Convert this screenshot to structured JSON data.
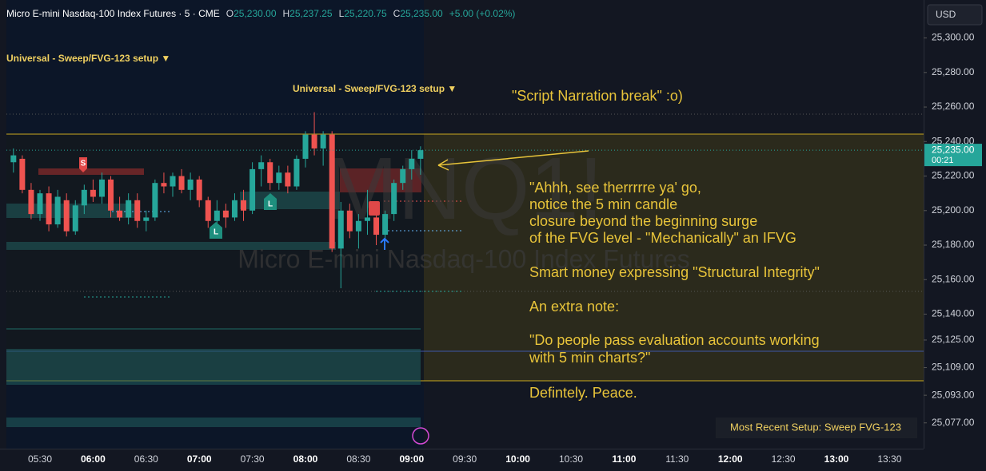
{
  "chart_data": {
    "type": "candlestick",
    "header": {
      "symbol": "Micro E-mini Nasdaq-100 Index Futures · 5 · CME",
      "o_label": "O",
      "o": "25,230.00",
      "h_label": "H",
      "h": "25,237.25",
      "l_label": "L",
      "l": "25,220.75",
      "c_label": "C",
      "c": "25,235.00",
      "change": "+5.00 (+0.02%)"
    },
    "currency": "USD",
    "watermark_symbol": "MNQ1!",
    "watermark_name": "Micro E-mini Nasdaq-100 Index Futures",
    "indicator_labels": [
      "Universal - Sweep/FVG-123 setup ▼",
      "Universal - Sweep/FVG-123 setup ▼"
    ],
    "markers": [
      "S",
      "L",
      "L"
    ],
    "last_price_label": "25,235.00",
    "countdown": "00:21",
    "setup_label": "Most Recent Setup: Sweep FVG-123",
    "annotation_title": "\"Script Narration break\" :o)",
    "annotation_lines": [
      "\"Ahhh, see therrrrre ya' go,",
      "notice the 5 min candle",
      "closure beyond the beginning surge",
      "of the FVG level - \"Mechanically\" an IFVG",
      "Smart money expressing \"Structural Integrity\"",
      "An extra note:",
      "\"Do people pass evaluation accounts working",
      "with 5 min charts?\"",
      "Defintely. Peace."
    ],
    "x": [
      "05:15",
      "05:20",
      "05:25",
      "05:30",
      "05:35",
      "05:40",
      "05:45",
      "05:50",
      "05:55",
      "06:00",
      "06:05",
      "06:10",
      "06:15",
      "06:20",
      "06:25",
      "06:30",
      "06:35",
      "06:40",
      "06:45",
      "06:50",
      "06:55",
      "07:00",
      "07:05",
      "07:10",
      "07:15",
      "07:20",
      "07:25",
      "07:30",
      "07:35",
      "07:40",
      "07:45",
      "07:50",
      "07:55",
      "08:00",
      "08:05",
      "08:10",
      "08:15",
      "08:20",
      "08:25",
      "08:30",
      "08:35",
      "08:40",
      "08:45",
      "08:50",
      "08:55",
      "09:00",
      "09:05"
    ],
    "open": [
      25228,
      25230,
      25212,
      25198,
      25210,
      25192,
      25206,
      25188,
      25203,
      25212,
      25208,
      25218,
      25200,
      25196,
      25206,
      25194,
      25196,
      25216,
      25214,
      25220,
      25212,
      25218,
      25206,
      25194,
      25200,
      25196,
      25206,
      25200,
      25224,
      25228,
      25216,
      25222,
      25214,
      25230,
      25244,
      25236,
      25244,
      25178,
      25200,
      25188,
      25194,
      25196,
      25186,
      25198,
      25216,
      25224,
      25230
    ],
    "high": [
      25236,
      25232,
      25216,
      25212,
      25214,
      25212,
      25210,
      25206,
      25215,
      25218,
      25222,
      25220,
      25208,
      25210,
      25210,
      25200,
      25218,
      25222,
      25222,
      25224,
      25222,
      25220,
      25208,
      25206,
      25204,
      25210,
      25212,
      25228,
      25232,
      25230,
      25226,
      25226,
      25232,
      25246,
      25257,
      25246,
      25246,
      25205,
      25204,
      25198,
      25212,
      25204,
      25200,
      25218,
      25226,
      25235,
      25237.25
    ],
    "low": [
      25222,
      25210,
      25195,
      25194,
      25188,
      25190,
      25185,
      25186,
      25198,
      25205,
      25204,
      25196,
      25194,
      25192,
      25190,
      25188,
      25194,
      25210,
      25208,
      25210,
      25206,
      25202,
      25190,
      25186,
      25190,
      25194,
      25194,
      25198,
      25214,
      25212,
      25212,
      25210,
      25212,
      25225,
      25232,
      25226,
      25176,
      25155,
      25184,
      25178,
      25186,
      25180,
      25183,
      25194,
      25212,
      25218,
      25220.75
    ],
    "close": [
      25232,
      25212,
      25198,
      25210,
      25192,
      25208,
      25188,
      25203,
      25212,
      25208,
      25218,
      25200,
      25196,
      25206,
      25194,
      25196,
      25216,
      25214,
      25220,
      25212,
      25218,
      25206,
      25194,
      25200,
      25196,
      25206,
      25200,
      25224,
      25228,
      25216,
      25222,
      25214,
      25230,
      25244,
      25236,
      25244,
      25178,
      25200,
      25188,
      25194,
      25196,
      25186,
      25198,
      25216,
      25224,
      25230,
      25235
    ],
    "up_color": "#26a69a",
    "down_color": "#ef5350",
    "ylim": [
      25063,
      25322
    ],
    "yticks": [
      {
        "value": 25300,
        "label": "25,300.00"
      },
      {
        "value": 25280,
        "label": "25,280.00"
      },
      {
        "value": 25260,
        "label": "25,260.00"
      },
      {
        "value": 25240,
        "label": "25,240.00"
      },
      {
        "value": 25220,
        "label": "25,220.00"
      },
      {
        "value": 25200,
        "label": "25,200.00"
      },
      {
        "value": 25180,
        "label": "25,180.00"
      },
      {
        "value": 25160,
        "label": "25,160.00"
      },
      {
        "value": 25140,
        "label": "25,140.00"
      },
      {
        "value": 25125,
        "label": "25,125.00"
      },
      {
        "value": 25109,
        "label": "25,109.00"
      },
      {
        "value": 25093,
        "label": "25,093.00"
      },
      {
        "value": 25077,
        "label": "25,077.00"
      }
    ],
    "xticks": [
      "05:30",
      "06:00",
      "06:30",
      "07:00",
      "07:30",
      "08:00",
      "08:30",
      "09:00",
      "09:30",
      "10:00",
      "10:30",
      "11:00",
      "11:30",
      "12:00",
      "12:30",
      "13:00",
      "13:30"
    ]
  }
}
